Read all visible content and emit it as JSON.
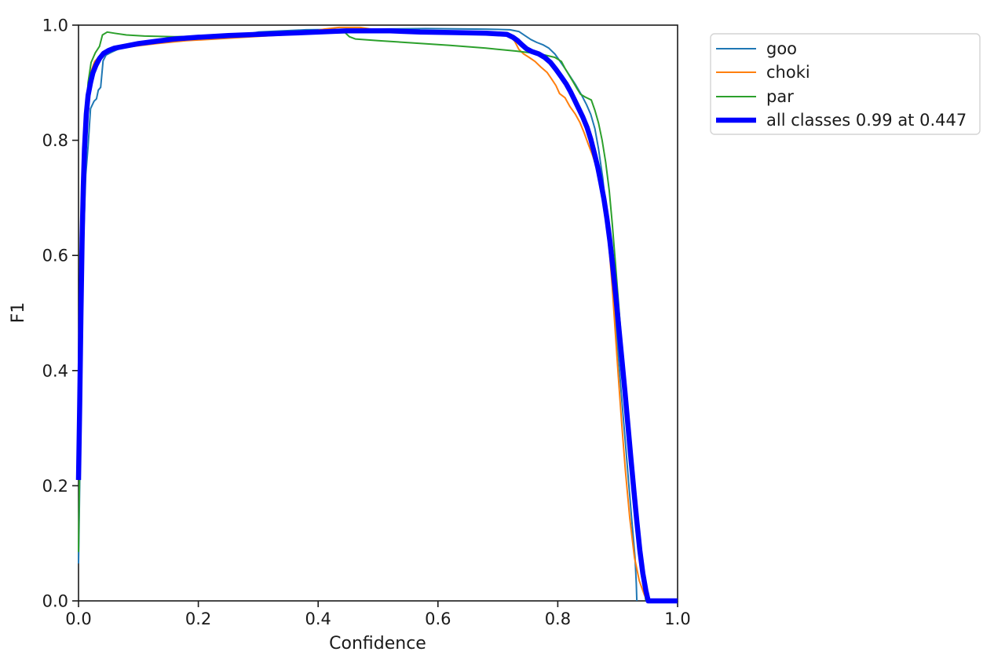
{
  "figure": {
    "background": "#ffffff",
    "spine_color": "#1a1a1a",
    "text_color": "#1a1a1a",
    "legend_border_color": "#d4d4d4",
    "legend_background": "#ffffff"
  },
  "chart_data": {
    "type": "line",
    "title": "",
    "xlabel": "Confidence",
    "ylabel": "F1",
    "xlim": [
      0.0,
      1.0
    ],
    "ylim": [
      0.0,
      1.0
    ],
    "x_ticks": [
      0.0,
      0.2,
      0.4,
      0.6,
      0.8,
      1.0
    ],
    "y_ticks": [
      0.0,
      0.2,
      0.4,
      0.6,
      0.8,
      1.0
    ],
    "grid": false,
    "legend_position": "outside-upper-right",
    "best_point": {
      "f1": 0.99,
      "confidence": 0.447
    },
    "series": [
      {
        "name": "goo",
        "color": "#1f77b4",
        "line_width": 2,
        "points": [
          [
            0.0,
            0.065
          ],
          [
            0.003,
            0.28
          ],
          [
            0.006,
            0.5
          ],
          [
            0.009,
            0.65
          ],
          [
            0.012,
            0.74
          ],
          [
            0.016,
            0.79
          ],
          [
            0.02,
            0.855
          ],
          [
            0.026,
            0.868
          ],
          [
            0.03,
            0.872
          ],
          [
            0.033,
            0.887
          ],
          [
            0.037,
            0.892
          ],
          [
            0.041,
            0.938
          ],
          [
            0.046,
            0.948
          ],
          [
            0.055,
            0.953
          ],
          [
            0.07,
            0.96
          ],
          [
            0.09,
            0.965
          ],
          [
            0.12,
            0.969
          ],
          [
            0.16,
            0.972
          ],
          [
            0.2,
            0.975
          ],
          [
            0.25,
            0.979
          ],
          [
            0.3,
            0.988
          ],
          [
            0.38,
            0.992
          ],
          [
            0.48,
            0.993
          ],
          [
            0.58,
            0.994
          ],
          [
            0.68,
            0.993
          ],
          [
            0.72,
            0.992
          ],
          [
            0.735,
            0.989
          ],
          [
            0.745,
            0.982
          ],
          [
            0.755,
            0.975
          ],
          [
            0.765,
            0.97
          ],
          [
            0.775,
            0.966
          ],
          [
            0.785,
            0.96
          ],
          [
            0.795,
            0.95
          ],
          [
            0.802,
            0.94
          ],
          [
            0.81,
            0.928
          ],
          [
            0.82,
            0.912
          ],
          [
            0.83,
            0.896
          ],
          [
            0.84,
            0.878
          ],
          [
            0.848,
            0.862
          ],
          [
            0.855,
            0.845
          ],
          [
            0.862,
            0.82
          ],
          [
            0.868,
            0.785
          ],
          [
            0.875,
            0.735
          ],
          [
            0.882,
            0.665
          ],
          [
            0.888,
            0.595
          ],
          [
            0.894,
            0.515
          ],
          [
            0.9,
            0.44
          ],
          [
            0.906,
            0.36
          ],
          [
            0.912,
            0.285
          ],
          [
            0.918,
            0.21
          ],
          [
            0.924,
            0.135
          ],
          [
            0.929,
            0.075
          ],
          [
            0.931,
            0.03
          ],
          [
            0.932,
            0.0
          ]
        ]
      },
      {
        "name": "choki",
        "color": "#ff7f0e",
        "line_width": 2,
        "points": [
          [
            0.0,
            0.27
          ],
          [
            0.004,
            0.47
          ],
          [
            0.008,
            0.67
          ],
          [
            0.012,
            0.8
          ],
          [
            0.016,
            0.875
          ],
          [
            0.02,
            0.917
          ],
          [
            0.027,
            0.937
          ],
          [
            0.04,
            0.951
          ],
          [
            0.06,
            0.958
          ],
          [
            0.09,
            0.963
          ],
          [
            0.13,
            0.968
          ],
          [
            0.18,
            0.973
          ],
          [
            0.23,
            0.976
          ],
          [
            0.29,
            0.98
          ],
          [
            0.34,
            0.983
          ],
          [
            0.38,
            0.988
          ],
          [
            0.41,
            0.993
          ],
          [
            0.435,
            0.996
          ],
          [
            0.47,
            0.996
          ],
          [
            0.495,
            0.992
          ],
          [
            0.52,
            0.988
          ],
          [
            0.56,
            0.986
          ],
          [
            0.61,
            0.985
          ],
          [
            0.66,
            0.984
          ],
          [
            0.7,
            0.983
          ],
          [
            0.72,
            0.981
          ],
          [
            0.728,
            0.972
          ],
          [
            0.735,
            0.958
          ],
          [
            0.743,
            0.95
          ],
          [
            0.752,
            0.944
          ],
          [
            0.762,
            0.937
          ],
          [
            0.772,
            0.927
          ],
          [
            0.782,
            0.918
          ],
          [
            0.79,
            0.906
          ],
          [
            0.797,
            0.895
          ],
          [
            0.803,
            0.881
          ],
          [
            0.812,
            0.874
          ],
          [
            0.82,
            0.859
          ],
          [
            0.829,
            0.846
          ],
          [
            0.837,
            0.831
          ],
          [
            0.844,
            0.813
          ],
          [
            0.851,
            0.793
          ],
          [
            0.858,
            0.774
          ],
          [
            0.865,
            0.752
          ],
          [
            0.871,
            0.727
          ],
          [
            0.876,
            0.698
          ],
          [
            0.881,
            0.66
          ],
          [
            0.886,
            0.61
          ],
          [
            0.891,
            0.545
          ],
          [
            0.896,
            0.468
          ],
          [
            0.901,
            0.39
          ],
          [
            0.907,
            0.305
          ],
          [
            0.913,
            0.225
          ],
          [
            0.92,
            0.145
          ],
          [
            0.928,
            0.075
          ],
          [
            0.936,
            0.035
          ],
          [
            0.944,
            0.012
          ],
          [
            0.949,
            0.0
          ]
        ]
      },
      {
        "name": "par",
        "color": "#2ca02c",
        "line_width": 2,
        "points": [
          [
            0.0,
            0.085
          ],
          [
            0.003,
            0.32
          ],
          [
            0.006,
            0.55
          ],
          [
            0.009,
            0.72
          ],
          [
            0.012,
            0.83
          ],
          [
            0.016,
            0.9
          ],
          [
            0.021,
            0.935
          ],
          [
            0.028,
            0.952
          ],
          [
            0.035,
            0.963
          ],
          [
            0.04,
            0.983
          ],
          [
            0.048,
            0.988
          ],
          [
            0.06,
            0.986
          ],
          [
            0.08,
            0.983
          ],
          [
            0.11,
            0.981
          ],
          [
            0.16,
            0.98
          ],
          [
            0.22,
            0.981
          ],
          [
            0.28,
            0.982
          ],
          [
            0.34,
            0.984
          ],
          [
            0.4,
            0.986
          ],
          [
            0.445,
            0.987
          ],
          [
            0.452,
            0.98
          ],
          [
            0.462,
            0.976
          ],
          [
            0.5,
            0.973
          ],
          [
            0.56,
            0.969
          ],
          [
            0.62,
            0.965
          ],
          [
            0.68,
            0.96
          ],
          [
            0.73,
            0.955
          ],
          [
            0.77,
            0.95
          ],
          [
            0.795,
            0.944
          ],
          [
            0.806,
            0.937
          ],
          [
            0.812,
            0.925
          ],
          [
            0.819,
            0.913
          ],
          [
            0.826,
            0.901
          ],
          [
            0.832,
            0.89
          ],
          [
            0.838,
            0.88
          ],
          [
            0.846,
            0.875
          ],
          [
            0.856,
            0.87
          ],
          [
            0.862,
            0.852
          ],
          [
            0.868,
            0.83
          ],
          [
            0.874,
            0.8
          ],
          [
            0.88,
            0.762
          ],
          [
            0.886,
            0.712
          ],
          [
            0.891,
            0.655
          ],
          [
            0.896,
            0.59
          ],
          [
            0.902,
            0.51
          ],
          [
            0.908,
            0.428
          ],
          [
            0.914,
            0.35
          ],
          [
            0.92,
            0.272
          ],
          [
            0.926,
            0.198
          ],
          [
            0.932,
            0.13
          ],
          [
            0.938,
            0.068
          ],
          [
            0.944,
            0.022
          ],
          [
            0.947,
            0.0
          ]
        ]
      },
      {
        "name": "all classes 0.99 at 0.447",
        "color": "#0000ff",
        "line_width": 6.5,
        "points": [
          [
            0.0,
            0.21
          ],
          [
            0.002,
            0.34
          ],
          [
            0.004,
            0.5
          ],
          [
            0.006,
            0.63
          ],
          [
            0.008,
            0.72
          ],
          [
            0.01,
            0.785
          ],
          [
            0.013,
            0.845
          ],
          [
            0.016,
            0.878
          ],
          [
            0.02,
            0.9
          ],
          [
            0.024,
            0.917
          ],
          [
            0.029,
            0.93
          ],
          [
            0.035,
            0.942
          ],
          [
            0.042,
            0.951
          ],
          [
            0.05,
            0.956
          ],
          [
            0.06,
            0.96
          ],
          [
            0.08,
            0.964
          ],
          [
            0.1,
            0.968
          ],
          [
            0.13,
            0.972
          ],
          [
            0.16,
            0.976
          ],
          [
            0.2,
            0.979
          ],
          [
            0.25,
            0.982
          ],
          [
            0.3,
            0.984
          ],
          [
            0.35,
            0.986
          ],
          [
            0.4,
            0.988
          ],
          [
            0.447,
            0.99
          ],
          [
            0.52,
            0.99
          ],
          [
            0.57,
            0.988
          ],
          [
            0.63,
            0.987
          ],
          [
            0.68,
            0.986
          ],
          [
            0.715,
            0.984
          ],
          [
            0.725,
            0.979
          ],
          [
            0.733,
            0.973
          ],
          [
            0.74,
            0.966
          ],
          [
            0.748,
            0.959
          ],
          [
            0.757,
            0.954
          ],
          [
            0.768,
            0.95
          ],
          [
            0.778,
            0.944
          ],
          [
            0.788,
            0.935
          ],
          [
            0.797,
            0.923
          ],
          [
            0.806,
            0.91
          ],
          [
            0.814,
            0.898
          ],
          [
            0.821,
            0.885
          ],
          [
            0.828,
            0.87
          ],
          [
            0.835,
            0.855
          ],
          [
            0.842,
            0.84
          ],
          [
            0.849,
            0.822
          ],
          [
            0.855,
            0.802
          ],
          [
            0.861,
            0.778
          ],
          [
            0.867,
            0.752
          ],
          [
            0.872,
            0.726
          ],
          [
            0.877,
            0.698
          ],
          [
            0.882,
            0.664
          ],
          [
            0.887,
            0.625
          ],
          [
            0.892,
            0.578
          ],
          [
            0.897,
            0.528
          ],
          [
            0.902,
            0.474
          ],
          [
            0.907,
            0.42
          ],
          [
            0.912,
            0.364
          ],
          [
            0.917,
            0.306
          ],
          [
            0.922,
            0.248
          ],
          [
            0.927,
            0.192
          ],
          [
            0.932,
            0.138
          ],
          [
            0.937,
            0.088
          ],
          [
            0.942,
            0.048
          ],
          [
            0.947,
            0.018
          ],
          [
            0.951,
            0.0
          ],
          [
            1.0,
            0.0
          ]
        ]
      }
    ]
  }
}
